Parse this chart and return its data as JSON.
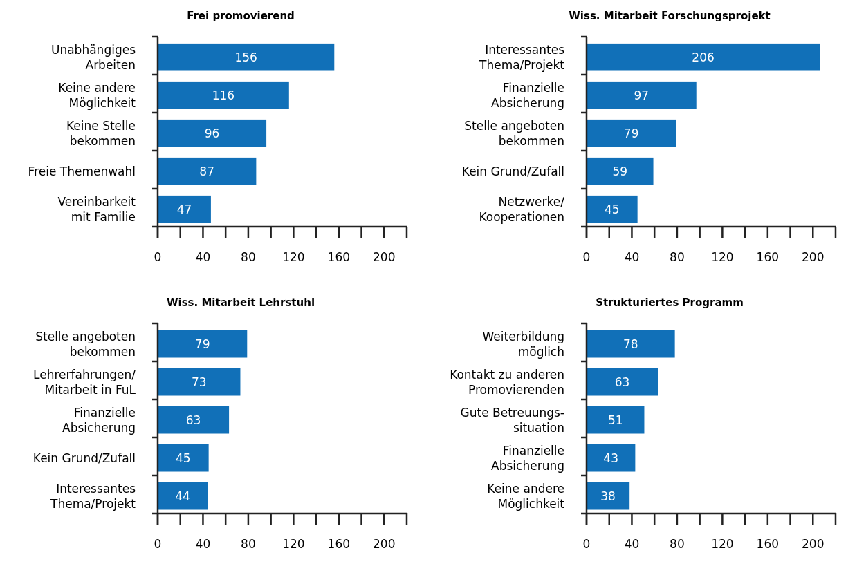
{
  "chart_data": [
    {
      "type": "bar",
      "orientation": "horizontal",
      "title": "Frei promovierend",
      "categories": [
        "Unabhängiges\nArbeiten",
        "Keine andere\nMöglichkeit",
        "Keine Stelle\nbekommen",
        "Freie Themenwahl",
        "Vereinbarkeit\nmit Familie"
      ],
      "values": [
        156,
        116,
        96,
        87,
        47
      ],
      "color": "#1170b8",
      "data_labels": true,
      "xlim": [
        0,
        220
      ],
      "xticks": [
        0,
        {
          "value": 20,
          "label": null
        },
        40,
        {
          "value": 60,
          "label": null
        },
        80,
        {
          "value": 100,
          "label": null
        },
        120,
        {
          "value": 140,
          "label": null
        },
        160,
        {
          "value": 180,
          "label": null
        },
        200,
        {
          "value": 220,
          "label": null
        }
      ]
    },
    {
      "type": "bar",
      "orientation": "horizontal",
      "title": "Wiss. Mitarbeit Forschungsprojekt",
      "categories": [
        "Interessantes\nThema/Projekt",
        "Finanzielle\nAbsicherung",
        "Stelle angeboten\nbekommen",
        "Kein Grund/Zufall",
        "Netzwerke/\nKooperationen"
      ],
      "values": [
        206,
        97,
        79,
        59,
        45
      ],
      "color": "#1170b8",
      "data_labels": true,
      "xlim": [
        0,
        220
      ],
      "xticks": [
        0,
        {
          "value": 20,
          "label": null
        },
        40,
        {
          "value": 60,
          "label": null
        },
        80,
        {
          "value": 100,
          "label": null
        },
        120,
        {
          "value": 140,
          "label": null
        },
        160,
        {
          "value": 180,
          "label": null
        },
        200,
        {
          "value": 220,
          "label": null
        }
      ]
    },
    {
      "type": "bar",
      "orientation": "horizontal",
      "title": "Wiss. Mitarbeit Lehrstuhl",
      "categories": [
        "Stelle angeboten\nbekommen",
        "Lehrerfahrungen/\nMitarbeit in FuL",
        "Finanzielle\nAbsicherung",
        "Kein Grund/Zufall",
        "Interessantes\nThema/Projekt"
      ],
      "values": [
        79,
        73,
        63,
        45,
        44
      ],
      "color": "#1170b8",
      "data_labels": true,
      "xlim": [
        0,
        220
      ],
      "xticks": [
        0,
        {
          "value": 20,
          "label": null
        },
        40,
        {
          "value": 60,
          "label": null
        },
        80,
        {
          "value": 100,
          "label": null
        },
        120,
        {
          "value": 140,
          "label": null
        },
        160,
        {
          "value": 180,
          "label": null
        },
        200,
        {
          "value": 220,
          "label": null
        }
      ]
    },
    {
      "type": "bar",
      "orientation": "horizontal",
      "title": "Strukturiertes Programm",
      "categories": [
        "Weiterbildung\nmöglich",
        "Kontakt zu anderen\nPromovierenden",
        "Gute Betreuungs-\nsituation",
        "Finanzielle\nAbsicherung",
        "Keine andere\nMöglichkeit"
      ],
      "values": [
        78,
        63,
        51,
        43,
        38
      ],
      "color": "#1170b8",
      "data_labels": true,
      "xlim": [
        0,
        220
      ],
      "xticks": [
        0,
        {
          "value": 20,
          "label": null
        },
        40,
        {
          "value": 60,
          "label": null
        },
        80,
        {
          "value": 100,
          "label": null
        },
        120,
        {
          "value": 140,
          "label": null
        },
        160,
        {
          "value": 180,
          "label": null
        },
        200,
        {
          "value": 220,
          "label": null
        }
      ]
    }
  ]
}
